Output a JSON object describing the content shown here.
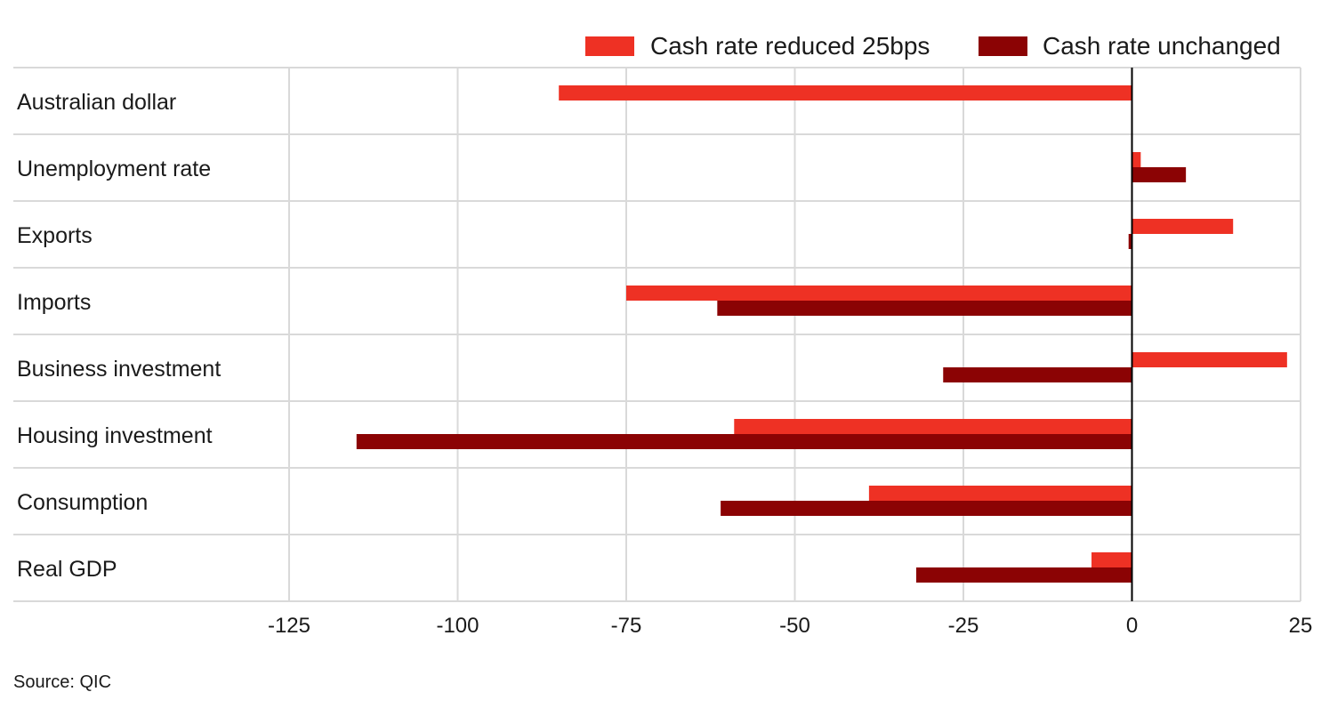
{
  "chart_data": {
    "type": "bar",
    "orientation": "horizontal",
    "categories": [
      "Australian dollar",
      "Unemployment rate",
      "Exports",
      "Imports",
      "Business investment",
      "Housing investment",
      "Consumption",
      "Real GDP"
    ],
    "series": [
      {
        "name": "Cash rate reduced 25bps",
        "color": "#ee3124",
        "values": [
          -85,
          1.3,
          15,
          -75,
          23,
          -59,
          -39,
          -6
        ]
      },
      {
        "name": "Cash rate unchanged",
        "color": "#8b0304",
        "values": [
          0,
          8,
          -0.5,
          -61.5,
          -28,
          -115,
          -61,
          -32
        ]
      }
    ],
    "xlim": [
      -125,
      25
    ],
    "xticks": [
      -125,
      -100,
      -75,
      -50,
      -25,
      0,
      25
    ],
    "xtick_labels": [
      "-125",
      "-100",
      "-75",
      "-50",
      "-25",
      "0",
      "25"
    ],
    "grid": true,
    "legend_position": "top-right"
  },
  "source": "Source: QIC"
}
